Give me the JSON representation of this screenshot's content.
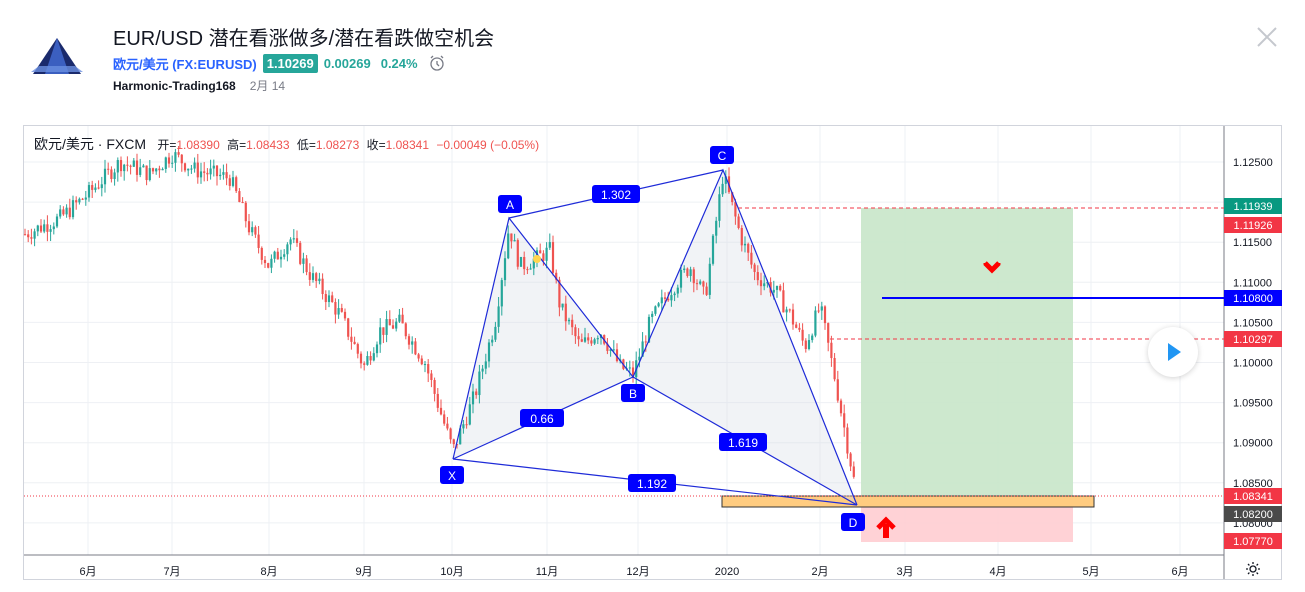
{
  "header": {
    "title": "EUR/USD 潜在看涨做多/潜在看跌做空机会",
    "symbol_label": "欧元/美元 (FX:EURUSD)",
    "price": "1.10269",
    "change": "0.00269",
    "change_pct": "0.24%",
    "author": "Harmonic-Trading168",
    "date": "2月 14"
  },
  "legend": {
    "name": "欧元/美元 · FXCM",
    "open_label": "开=",
    "open": "1.08390",
    "high_label": "高=",
    "high": "1.08433",
    "low_label": "低=",
    "low": "1.08273",
    "close_label": "收=",
    "close": "1.08341",
    "change": "−0.00049 (−0.05%)"
  },
  "chart_data": {
    "type": "candlestick",
    "instrument": "欧元/美元 · FXCM",
    "y_ticks": [
      "1.12500",
      "1.12000",
      "1.11500",
      "1.11000",
      "1.10500",
      "1.10000",
      "1.09500",
      "1.09000",
      "1.08500",
      "1.08000"
    ],
    "x_ticks": [
      "6月",
      "7月",
      "8月",
      "9月",
      "10月",
      "11月",
      "12月",
      "2020",
      "2月",
      "3月",
      "4月",
      "5月",
      "6月"
    ],
    "price_labels": [
      {
        "value": "1.11939",
        "color": "#089981"
      },
      {
        "value": "1.11926",
        "color": "#f23645"
      },
      {
        "value": "1.10800",
        "color": "#0000ff"
      },
      {
        "value": "1.10297",
        "color": "#f23645"
      },
      {
        "value": "1.08341",
        "color": "#f23645"
      },
      {
        "value": "1.08200",
        "color": "#4a4a4a"
      },
      {
        "value": "1.07770",
        "color": "#f23645"
      }
    ],
    "pattern_points": [
      {
        "name": "X",
        "date": "10月",
        "price": 1.0879
      },
      {
        "name": "A",
        "date": "10月",
        "price": 1.1179
      },
      {
        "name": "B",
        "date": "11月",
        "price": 1.0981
      },
      {
        "name": "C",
        "date": "2020",
        "price": 1.1239
      },
      {
        "name": "D",
        "date": "2月",
        "price": 1.0827
      }
    ],
    "ratios": [
      "0.66",
      "1.302",
      "1.619",
      "1.192"
    ]
  }
}
